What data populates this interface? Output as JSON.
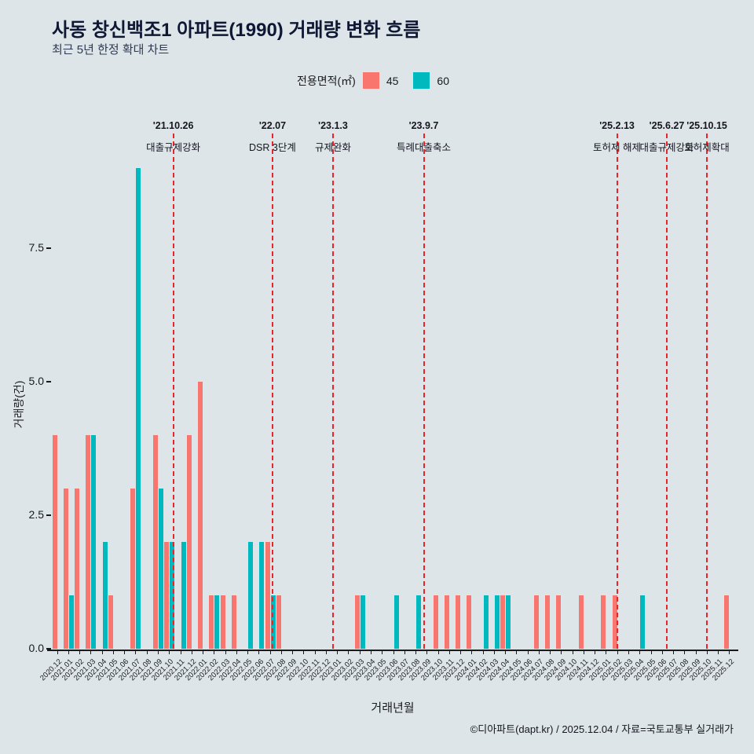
{
  "title": "사동 창신백조1 아파트(1990) 거래량 변화 흐름",
  "subtitle": "최근 5년 한정 확대 차트",
  "legend": {
    "label": "전용면적(㎡)",
    "items": [
      {
        "name": "45",
        "color": "#f8766d"
      },
      {
        "name": "60",
        "color": "#00b9be"
      }
    ]
  },
  "footer": "©디아파트(dapt.kr) / 2025.12.04 / 자료=국토교통부 실거래가",
  "colors": {
    "background": "#dde5e9",
    "title_text": "#0e1733",
    "annotation_line": "#e8262a",
    "axis": "#1a1a1a",
    "series_45": "#f8766d",
    "series_60": "#00b9be"
  },
  "chart_data": {
    "type": "bar",
    "title": "사동 창신백조1 아파트(1990) 거래량 변화 흐름",
    "subtitle": "최근 5년 한정 확대 차트",
    "xlabel": "거래년월",
    "ylabel": "거래량(건)",
    "ylim": [
      0,
      9.6
    ],
    "yticks": [
      0,
      2.5,
      5,
      7.5
    ],
    "grid": false,
    "legend_position": "top",
    "legend_title": "전용면적(㎡)",
    "categories": [
      "2020.12",
      "2021.01",
      "2021.02",
      "2021.03",
      "2021.04",
      "2021.05",
      "2021.06",
      "2021.07",
      "2021.08",
      "2021.09",
      "2021.10",
      "2021.11",
      "2021.12",
      "2022.01",
      "2022.02",
      "2022.03",
      "2022.04",
      "2022.05",
      "2022.06",
      "2022.07",
      "2022.08",
      "2022.09",
      "2022.10",
      "2022.11",
      "2022.12",
      "2023.01",
      "2023.02",
      "2023.03",
      "2023.04",
      "2023.05",
      "2023.06",
      "2023.07",
      "2023.08",
      "2023.09",
      "2023.10",
      "2023.11",
      "2023.12",
      "2024.01",
      "2024.02",
      "2024.03",
      "2024.04",
      "2024.05",
      "2024.06",
      "2024.07",
      "2024.08",
      "2024.09",
      "2024.10",
      "2024.11",
      "2024.12",
      "2025.01",
      "2025.02",
      "2025.03",
      "2025.04",
      "2025.05",
      "2025.06",
      "2025.07",
      "2025.08",
      "2025.09",
      "2025.10",
      "2025.11",
      "2025.12"
    ],
    "series": [
      {
        "name": "45",
        "color": "#f8766d",
        "values": [
          4,
          3,
          3,
          4,
          0,
          1,
          0,
          3,
          0,
          4,
          2,
          0,
          4,
          5,
          1,
          1,
          1,
          0,
          0,
          2,
          1,
          0,
          0,
          0,
          0,
          0,
          0,
          1,
          0,
          0,
          0,
          0,
          0,
          0,
          1,
          1,
          1,
          1,
          0,
          0,
          1,
          0,
          0,
          1,
          1,
          1,
          0,
          1,
          0,
          1,
          1,
          0,
          0,
          0,
          0,
          0,
          0,
          0,
          0,
          0,
          1
        ]
      },
      {
        "name": "60",
        "color": "#00b9be",
        "values": [
          0,
          1,
          0,
          4,
          2,
          0,
          0,
          9,
          0,
          3,
          2,
          2,
          0,
          0,
          1,
          0,
          0,
          2,
          2,
          1,
          0,
          0,
          0,
          0,
          0,
          0,
          0,
          1,
          0,
          0,
          1,
          0,
          1,
          0,
          0,
          0,
          0,
          0,
          1,
          1,
          1,
          0,
          0,
          0,
          0,
          0,
          0,
          0,
          0,
          0,
          0,
          0,
          1,
          0,
          0,
          0,
          0,
          0,
          0,
          0,
          0
        ]
      }
    ],
    "annotations": [
      {
        "date": "'21.10.26",
        "label": "대출규제강화",
        "x_index": 10.84
      },
      {
        "date": "'22.07",
        "label": "DSR 3단계",
        "x_index": 19.7
      },
      {
        "date": "'23.1.3",
        "label": "규제완화",
        "x_index": 25.1
      },
      {
        "date": "'23.9.7",
        "label": "특례대출축소",
        "x_index": 33.2
      },
      {
        "date": "'25.2.13",
        "label": "토허제 해제",
        "x_index": 50.45
      },
      {
        "date": "'25.6.27",
        "label": "대출규제강화",
        "x_index": 54.9
      },
      {
        "date": "'25.10.15",
        "label": "토허제확대",
        "x_index": 58.48
      }
    ]
  }
}
